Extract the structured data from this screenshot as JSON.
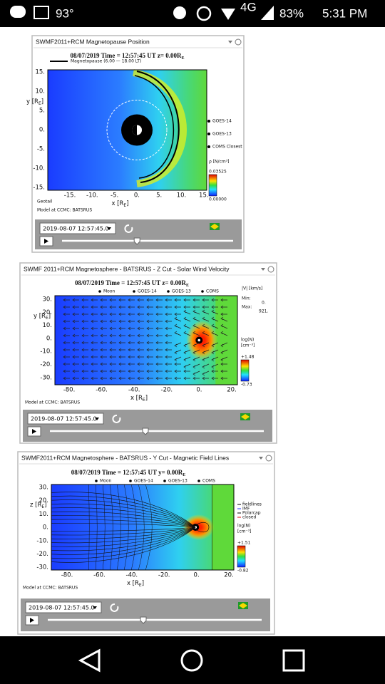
{
  "status_bar": {
    "temperature": "93°",
    "network": "4G",
    "battery": "83%",
    "time": "5:31 PM"
  },
  "panels": [
    {
      "title": "SWMF2011+RCM Magnetopause Position",
      "plot_title": [
        "08/07/2019 Time = 12:57:45 UT z= 0.00R",
        "E"
      ],
      "line_legend": "Magnetopause (6.00 — 18.00 LT)",
      "y_axis_label": [
        "y [R",
        "E",
        "]"
      ],
      "y_ticks": [
        "15.",
        "10.",
        "5.",
        "0.",
        "-5.",
        "-10.",
        "-15."
      ],
      "x_ticks": [
        "-15.",
        "-10.",
        "-5.",
        "0.",
        "5.",
        "10.",
        "15."
      ],
      "x_axis_label": [
        "x [R",
        "E",
        "]"
      ],
      "legend": [
        "GOES-14",
        "GOES-13",
        "COMS Closest"
      ],
      "colorbar": {
        "label": [
          "ρ [N/cm³]"
        ],
        "max": "0.03525",
        "min": "0.00000"
      },
      "note": "Geotail",
      "footer": "Model at CCMC: BATSRUS",
      "timestamp": "2019-08-07 12:57:45.0"
    },
    {
      "title": "SWMF 2011+RCM Magnetosphere - BATSRUS - Z Cut - Solar Wind Velocity",
      "plot_title": [
        "08/07/2019 Time = 12:57:45 UT z= 0.00R",
        "E"
      ],
      "y_axis_label": [
        "y [R",
        "E",
        "]"
      ],
      "y_ticks": [
        "30.",
        "20.",
        "10.",
        "0.",
        "-10.",
        "-20.",
        "-30."
      ],
      "x_ticks": [
        "-80.",
        "-60.",
        "-40.",
        "-20.",
        "0.",
        "20."
      ],
      "x_axis_label": [
        "x [R",
        "E",
        "]"
      ],
      "legend": [
        "Moon",
        "GOES-14",
        "GOES-13",
        "COMS"
      ],
      "velocity": {
        "label": "|V| [km/s]",
        "min_label": "Min:",
        "min": "0.",
        "max_label": "Max:",
        "max": "921."
      },
      "colorbar": {
        "label": [
          "log(N)",
          "[cm⁻³]"
        ],
        "max": "+1.48",
        "min": "-0.73"
      },
      "footer": "Model at CCMC: BATSRUS",
      "timestamp": "2019-08-07 12:57:45.0"
    },
    {
      "title": "SWMF2011+RCM Magnetosphere - BATSRUS - Y Cut - Magnetic Field Lines",
      "plot_title": [
        "08/07/2019 Time = 12:57:45 UT y= 0.00R",
        "E"
      ],
      "y_axis_label": [
        "z [R",
        "E",
        "]"
      ],
      "y_ticks": [
        "30.",
        "20.",
        "10.",
        "0.",
        "-10.",
        "-20.",
        "-30."
      ],
      "x_ticks": [
        "-80.",
        "-60.",
        "-40.",
        "-20.",
        "0.",
        "20."
      ],
      "x_axis_label": [
        "x [R",
        "E",
        "]"
      ],
      "legend": [
        "Moon",
        "GOES-14",
        "GOES-13",
        "COMS"
      ],
      "line_types": [
        "fieldlines",
        "IMF",
        "Polarcap",
        "closed"
      ],
      "colorbar": {
        "label": [
          "log(N)",
          "[cm⁻³]"
        ],
        "max": "+1.51",
        "min": "-0.82"
      },
      "footer": "Model at CCMC: BATSRUS",
      "timestamp": "2019-08-07 12:57:45.0"
    }
  ]
}
